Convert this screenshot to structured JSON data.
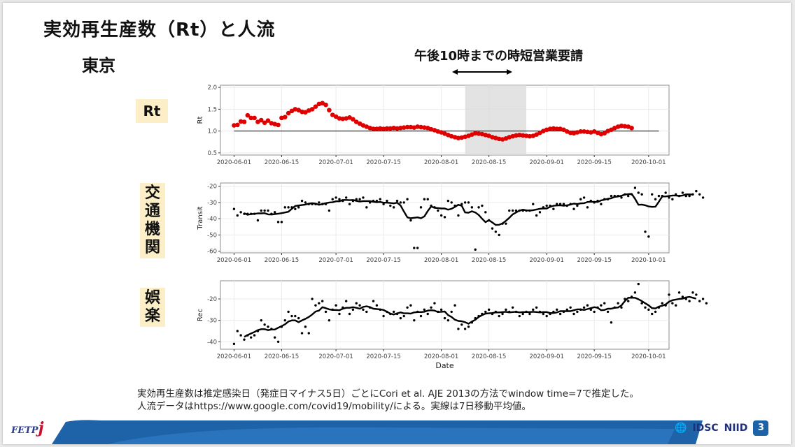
{
  "slide": {
    "title": "実効再生産数（Rt）と人流",
    "subtitle": "東京",
    "curfew_label": "午後10時までの時短営業要請",
    "label_rt": "Rt",
    "label_transit": [
      "交",
      "通",
      "機",
      "関"
    ],
    "label_rec": [
      "娯",
      "楽"
    ],
    "footnote_1": "実効再生産数は推定感染日（発症日マイナス5日）ごとにCori et al. AJE 2013の方法でwindow time=7で推定した。",
    "footnote_2": "人流データはhttps://www.google.com/covid19/mobility/による。実線は7日移動平均値。",
    "logo_left_text": "FETP",
    "logo_left_accent": "j",
    "logo_idsc": "IDSC",
    "logo_niid": "NIID",
    "page_number": "3"
  },
  "colors": {
    "rt_point": "#e00000",
    "band": "#d9d9d9",
    "line": "#000000",
    "accent_blue": "#1e63a8"
  },
  "chart_data": [
    {
      "type": "scatter",
      "name": "rt",
      "ylabel": "Rt",
      "xlabel": "",
      "x_ticks": [
        "2020-06-01",
        "2020-06-15",
        "2020-07-01",
        "2020-07-15",
        "2020-08-01",
        "2020-08-15",
        "2020-09-01",
        "2020-09-15",
        "2020-10-01"
      ],
      "xlim": [
        "2020-05-28",
        "2020-10-07"
      ],
      "ylim": [
        0.45,
        2.05
      ],
      "y_ticks": [
        0.5,
        1.0,
        1.5,
        2.0
      ],
      "y_tick_labels": [
        "0.5",
        "1.0",
        "1.5",
        "2.0"
      ],
      "reference_line": 1.0,
      "reference_range": [
        "2020-06-01",
        "2020-10-04"
      ],
      "shaded_range": [
        "2020-08-08",
        "2020-08-26"
      ],
      "start_date": "2020-06-01",
      "values": [
        1.13,
        1.14,
        1.22,
        1.21,
        1.36,
        1.3,
        1.3,
        1.21,
        1.25,
        1.19,
        1.24,
        1.18,
        1.16,
        1.14,
        1.3,
        1.32,
        1.41,
        1.46,
        1.5,
        1.48,
        1.44,
        1.43,
        1.47,
        1.5,
        1.56,
        1.62,
        1.64,
        1.6,
        1.48,
        1.37,
        1.33,
        1.29,
        1.28,
        1.29,
        1.31,
        1.27,
        1.21,
        1.17,
        1.13,
        1.1,
        1.07,
        1.05,
        1.05,
        1.06,
        1.05,
        1.06,
        1.06,
        1.07,
        1.06,
        1.07,
        1.08,
        1.09,
        1.09,
        1.08,
        1.1,
        1.09,
        1.08,
        1.07,
        1.04,
        1.02,
        0.99,
        0.97,
        0.94,
        0.91,
        0.88,
        0.86,
        0.84,
        0.85,
        0.87,
        0.89,
        0.92,
        0.95,
        0.94,
        0.93,
        0.91,
        0.89,
        0.86,
        0.84,
        0.82,
        0.81,
        0.83,
        0.86,
        0.88,
        0.9,
        0.91,
        0.9,
        0.89,
        0.88,
        0.89,
        0.92,
        0.96,
        1.0,
        1.03,
        1.05,
        1.06,
        1.05,
        1.05,
        1.03,
        0.99,
        0.96,
        0.95,
        0.97,
        0.99,
        0.99,
        0.98,
        0.97,
        0.99,
        0.96,
        0.93,
        0.95,
        1.0,
        1.03,
        1.07,
        1.1,
        1.12,
        1.11,
        1.1,
        1.07
      ]
    },
    {
      "type": "scatter",
      "name": "transit",
      "ylabel": "Transit",
      "xlabel": "",
      "x_ticks": [
        "2020-06-01",
        "2020-06-15",
        "2020-07-01",
        "2020-07-15",
        "2020-08-01",
        "2020-08-15",
        "2020-09-01",
        "2020-09-15",
        "2020-10-01"
      ],
      "xlim": [
        "2020-05-28",
        "2020-10-07"
      ],
      "ylim": [
        -61,
        -18
      ],
      "y_ticks": [
        -60,
        -50,
        -40,
        -30,
        -20
      ],
      "y_tick_labels": [
        "-60",
        "-50",
        "-40",
        "-30",
        "-20"
      ],
      "start_date": "2020-06-01",
      "values": [
        -34,
        -38,
        -36,
        -37,
        -37,
        -37,
        -37,
        -41,
        -35,
        -35,
        -35,
        -37,
        -36,
        -42,
        -42,
        -33,
        -33,
        -33,
        -34,
        -33,
        -29,
        -30,
        -31,
        -31,
        -31,
        -30,
        -31,
        -31,
        -35,
        -28,
        -27,
        -28,
        -29,
        -27,
        -31,
        -29,
        -28,
        -28,
        -27,
        -33,
        -30,
        -29,
        -29,
        -28,
        -31,
        -29,
        -32,
        -33,
        -29,
        -30,
        -30,
        -28,
        -41,
        -58,
        -58,
        -33,
        -28,
        -28,
        -32,
        -33,
        -35,
        -38,
        -39,
        -29,
        -30,
        -32,
        -38,
        -31,
        -30,
        -30,
        -33,
        -59,
        -33,
        -32,
        -36,
        -41,
        -46,
        -48,
        -50,
        -43,
        -43,
        -35,
        -35,
        -35,
        -35,
        -35,
        -35,
        -35,
        -31,
        -38,
        -36,
        -33,
        -32,
        -32,
        -34,
        -31,
        -31,
        -31,
        -32,
        -31,
        -34,
        -32,
        -28,
        -27,
        -33,
        -29,
        -30,
        -29,
        -31,
        -28,
        -28,
        -26,
        -26,
        -26,
        -27,
        -25,
        -26,
        -25,
        -21,
        -24,
        -25,
        -48,
        -51,
        -25,
        -28,
        -26,
        -26,
        -24,
        -27,
        -28,
        -25,
        -26,
        -24,
        -26,
        -26,
        -25,
        -23,
        -25,
        -27
      ]
    },
    {
      "type": "scatter",
      "name": "rec",
      "ylabel": "Rec",
      "xlabel": "Date",
      "x_ticks": [
        "2020-06-01",
        "2020-06-15",
        "2020-07-01",
        "2020-07-15",
        "2020-08-01",
        "2020-08-15",
        "2020-09-01",
        "2020-09-15",
        "2020-10-01"
      ],
      "xlim": [
        "2020-05-28",
        "2020-10-07"
      ],
      "ylim": [
        -43.5,
        -11.5
      ],
      "y_ticks": [
        -40,
        -30,
        -20
      ],
      "y_tick_labels": [
        "-40",
        "-30",
        "-20"
      ],
      "start_date": "2020-06-01",
      "values": [
        -41,
        -35,
        -37,
        -39,
        -37,
        -38,
        -37,
        -35,
        -30,
        -32,
        -33,
        -34,
        -38,
        -40,
        -33,
        -30,
        -26,
        -28,
        -28,
        -29,
        -36,
        -33,
        -36,
        -20,
        -23,
        -22,
        -21,
        -26,
        -30,
        -25,
        -23,
        -27,
        -24,
        -21,
        -27,
        -25,
        -22,
        -23,
        -25,
        -26,
        -24,
        -21,
        -23,
        -25,
        -28,
        -26,
        -27,
        -26,
        -27,
        -29,
        -28,
        -24,
        -23,
        -30,
        -26,
        -28,
        -25,
        -27,
        -24,
        -22,
        -26,
        -25,
        -29,
        -30,
        -26,
        -23,
        -34,
        -32,
        -34,
        -33,
        -31,
        -29,
        -28,
        -27,
        -26,
        -25,
        -27,
        -26,
        -28,
        -27,
        -25,
        -26,
        -24,
        -26,
        -28,
        -27,
        -26,
        -27,
        -25,
        -24,
        -26,
        -27,
        -28,
        -27,
        -26,
        -25,
        -27,
        -26,
        -25,
        -24,
        -27,
        -26,
        -25,
        -24,
        -23,
        -25,
        -26,
        -24,
        -23,
        -22,
        -26,
        -31,
        -24,
        -22,
        -24,
        -20,
        -21,
        -19,
        -17,
        -13,
        -22,
        -24,
        -25,
        -27,
        -26,
        -24,
        -22,
        -23,
        -18,
        -22,
        -23,
        -17,
        -19,
        -20,
        -21,
        -17,
        -18,
        -21,
        -20,
        -22
      ]
    }
  ]
}
